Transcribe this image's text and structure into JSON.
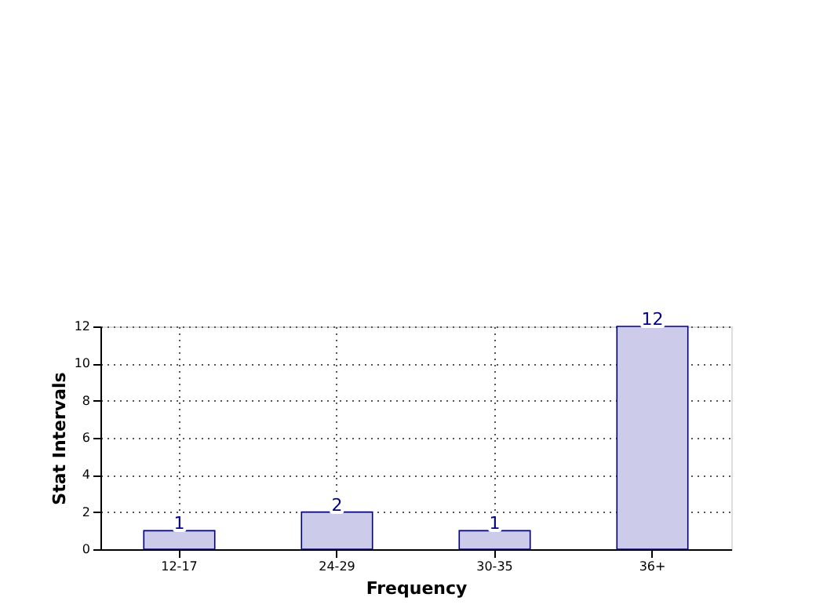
{
  "chart_data": {
    "type": "bar",
    "xlabel": "Frequency",
    "ylabel": "Stat Intervals",
    "categories": [
      "12-17",
      "24-29",
      "30-35",
      "36+"
    ],
    "values": [
      1,
      2,
      1,
      12
    ],
    "color": "#ccccea",
    "ylim": [
      0,
      12
    ],
    "yticks": [
      0,
      2,
      4,
      6,
      8,
      10,
      12
    ],
    "grid": true,
    "data_labels": true
  }
}
